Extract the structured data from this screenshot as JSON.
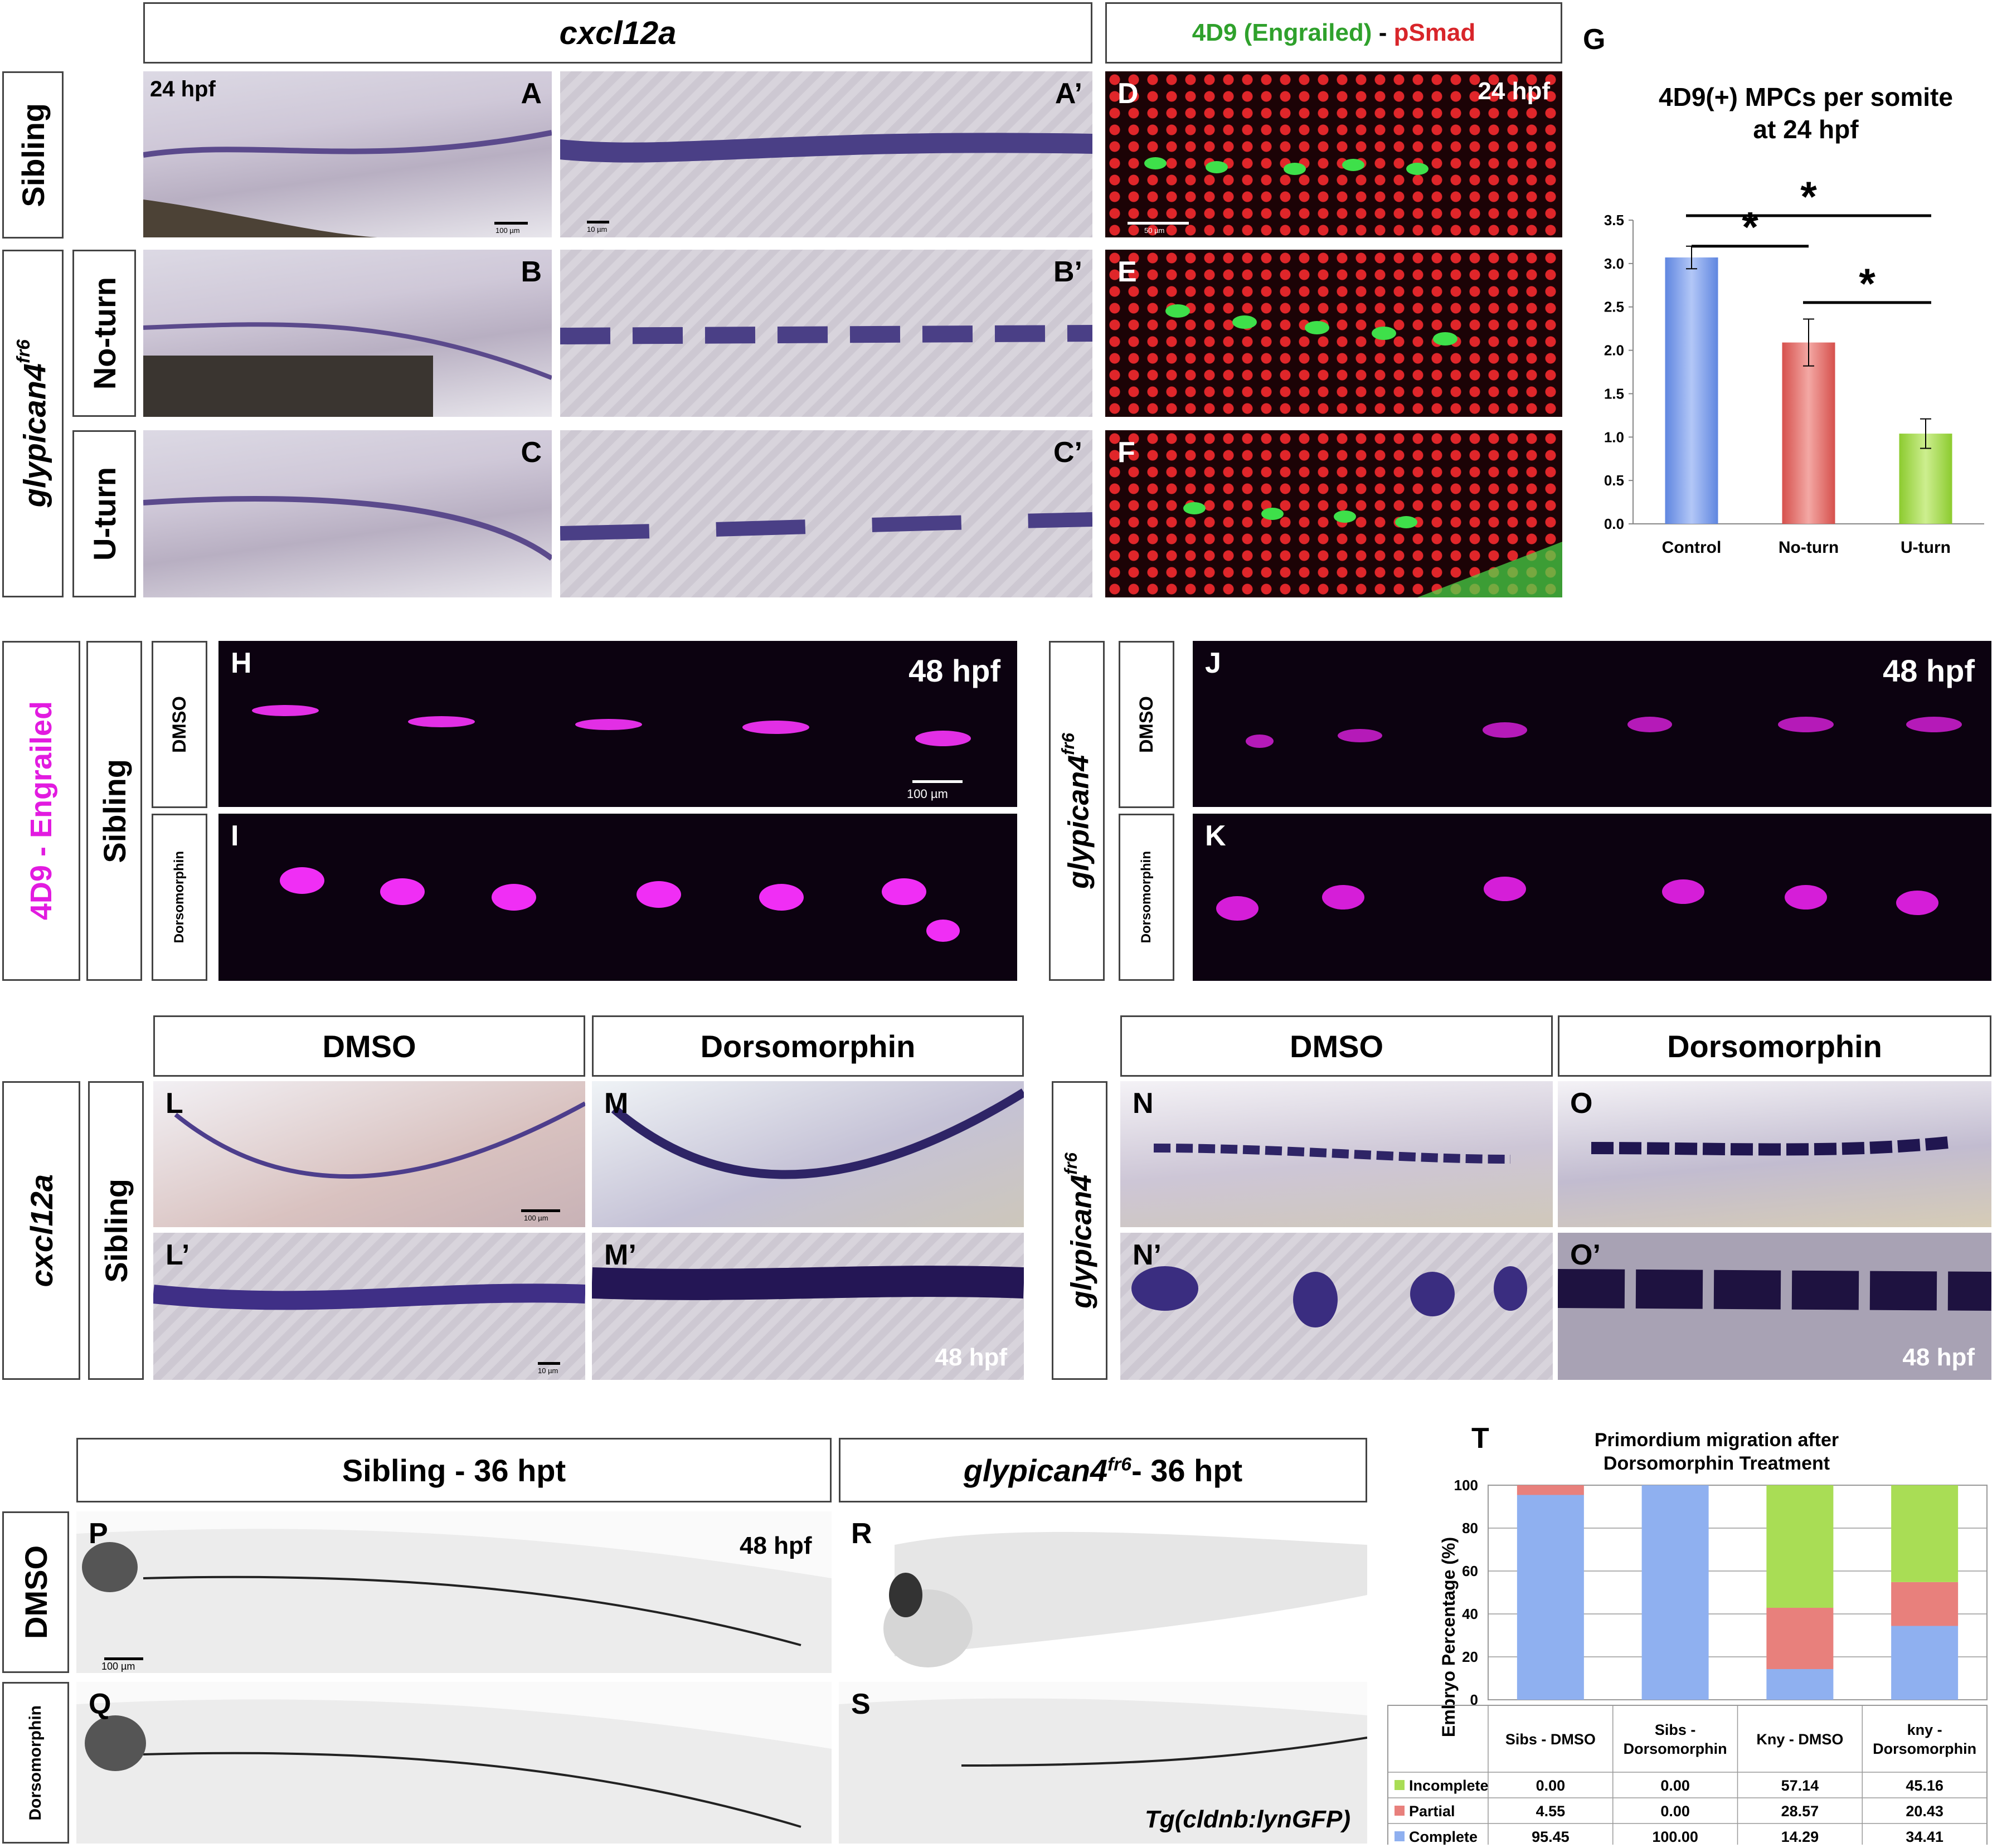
{
  "headers": {
    "cxcl12a_top": "cxcl12a",
    "stain_4d9": "4D9 (Engrailed)",
    "stain_dash": " - ",
    "stain_psmad": "pSmad",
    "panel_g": "G",
    "side_sibling": "Sibling",
    "side_glypican": "glypican4",
    "side_glypican_sup": "fr6",
    "no_turn": "No-turn",
    "u_turn": "U-turn",
    "engrailed_side": "4D9 - Engrailed",
    "dmso": "DMSO",
    "dorsomorphin": "Dorsomorphin",
    "cxcl12a_side": "cxcl12a",
    "sibling_36": "Sibling - 36 hpt",
    "glypican_36": "glypican4",
    "glypican_36_sup": "fr6",
    "glypican_36_suffix": "- 36 hpt",
    "panel_t": "T"
  },
  "panels": {
    "A": "A",
    "A2": "A’",
    "B": "B",
    "B2": "B’",
    "C": "C",
    "C2": "C’",
    "D": "D",
    "E": "E",
    "F": "F",
    "H": "H",
    "I": "I",
    "J": "J",
    "K": "K",
    "L": "L",
    "L2": "L’",
    "M": "M",
    "M2": "M’",
    "N": "N",
    "N2": "N’",
    "O": "O",
    "O2": "O’",
    "P": "P",
    "Q": "Q",
    "R": "R",
    "S": "S"
  },
  "stages": {
    "a": "24 hpf",
    "d": "24 hpf",
    "h": "48 hpf",
    "j": "48 hpf",
    "m2": "48 hpf",
    "o2": "48 hpf",
    "p": "48 hpf"
  },
  "scalebars": {
    "a": "100 µm",
    "a2": "10 µm",
    "d": "50 µm",
    "h": "100 µm",
    "l": "100 µm",
    "l2": "10 µm",
    "p": "100 µm"
  },
  "transgene": "Tg(cldnb:lynGFP)",
  "colors": {
    "green_label": "#2fa12c",
    "red_label": "#d8252a",
    "magenta_label": "#e21be0",
    "bar_blue": "#8fb0f0",
    "bar_red": "#e8807c",
    "bar_green": "#a9dd55"
  },
  "chart_data": [
    {
      "type": "bar",
      "title": "4D9(+) MPCs per somite at 24 hpf",
      "title_line1": "4D9(+) MPCs per somite",
      "title_line2": "at 24 hpf",
      "categories": [
        "Control",
        "No-turn",
        "U-turn"
      ],
      "values": [
        3.07,
        2.09,
        1.04
      ],
      "errors": [
        0.13,
        0.27,
        0.17
      ],
      "ylim": [
        0,
        3.5
      ],
      "yticks": [
        "0.0",
        "0.5",
        "1.0",
        "1.5",
        "2.0",
        "2.5",
        "3.0",
        "3.5"
      ],
      "significance": [
        "*",
        "*",
        "*"
      ],
      "grid": false
    },
    {
      "type": "bar",
      "stacked": true,
      "title": "Primordium migration after Dorsomorphin Treatment",
      "title_line1": "Primordium migration after",
      "title_line2": "Dorsomorphin Treatment",
      "ylabel": "Embryo Percentage (%)",
      "ylim": [
        0,
        100
      ],
      "yticks": [
        "0",
        "20",
        "40",
        "60",
        "80",
        "100"
      ],
      "categories": [
        "Sibs - DMSO",
        "Sibs - Dorsomorphin",
        "Kny - DMSO",
        "kny - Dorsomorphin"
      ],
      "category_lines": [
        [
          "Sibs - DMSO"
        ],
        [
          "Sibs -",
          "Dorsomorphin"
        ],
        [
          "Kny - DMSO"
        ],
        [
          "kny -",
          "Dorsomorphin"
        ]
      ],
      "series": [
        {
          "name": "Complete",
          "values": [
            95.45,
            100.0,
            14.29,
            34.41
          ],
          "labels": [
            "95.45",
            "100.00",
            "14.29",
            "34.41"
          ]
        },
        {
          "name": "Partial",
          "values": [
            4.55,
            0.0,
            28.57,
            20.43
          ],
          "labels": [
            "4.55",
            "0.00",
            "28.57",
            "20.43"
          ]
        },
        {
          "name": "Incomplete",
          "values": [
            0.0,
            0.0,
            57.14,
            45.16
          ],
          "labels": [
            "0.00",
            "0.00",
            "57.14",
            "45.16"
          ]
        }
      ],
      "table_rows_order": [
        "Incomplete",
        "Partial",
        "Complete"
      ],
      "grid": true,
      "legend": "table-below"
    }
  ]
}
